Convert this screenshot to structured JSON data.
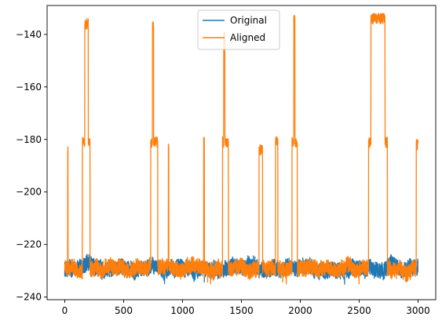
{
  "chart_data": {
    "type": "line",
    "title": "",
    "xlabel": "",
    "ylabel": "",
    "xlim": [
      -150,
      3150
    ],
    "ylim": [
      -241,
      -129
    ],
    "grid": false,
    "legend_position": "top-center",
    "x_ticks": [
      0,
      500,
      1000,
      1500,
      2000,
      2500,
      3000
    ],
    "x_tick_labels": [
      "0",
      "500",
      "1000",
      "1500",
      "2000",
      "2500",
      "3000"
    ],
    "y_ticks": [
      -240,
      -220,
      -200,
      -180,
      -160,
      -140
    ],
    "y_tick_labels": [
      "−240",
      "−220",
      "−200",
      "−180",
      "−160",
      "−140"
    ],
    "series": [
      {
        "name": "Original",
        "color": "#1f77b4",
        "n_points": 3000,
        "baseline": -229,
        "noise_amplitude": 3,
        "y_range": [
          -236,
          -222
        ],
        "spikes": []
      },
      {
        "name": "Aligned",
        "color": "#ff7f0e",
        "n_points": 3000,
        "baseline": -229,
        "noise_amplitude": 3,
        "y_range": [
          -235,
          -133
        ],
        "spikes": [
          {
            "start": 25,
            "end": 28,
            "level": -184
          },
          {
            "start": 150,
            "end": 170,
            "level": -181
          },
          {
            "start": 170,
            "end": 200,
            "level": -136
          },
          {
            "start": 200,
            "end": 215,
            "level": -181
          },
          {
            "start": 730,
            "end": 745,
            "level": -181
          },
          {
            "start": 745,
            "end": 755,
            "level": -137
          },
          {
            "start": 755,
            "end": 790,
            "level": -181
          },
          {
            "start": 880,
            "end": 884,
            "level": -183
          },
          {
            "start": 1180,
            "end": 1186,
            "level": -181
          },
          {
            "start": 1340,
            "end": 1350,
            "level": -181
          },
          {
            "start": 1350,
            "end": 1360,
            "level": -141
          },
          {
            "start": 1360,
            "end": 1390,
            "level": -181
          },
          {
            "start": 1650,
            "end": 1680,
            "level": -184
          },
          {
            "start": 1790,
            "end": 1810,
            "level": -181
          },
          {
            "start": 1930,
            "end": 1945,
            "level": -181
          },
          {
            "start": 1945,
            "end": 1955,
            "level": -134
          },
          {
            "start": 1955,
            "end": 1975,
            "level": -181
          },
          {
            "start": 2580,
            "end": 2600,
            "level": -181
          },
          {
            "start": 2600,
            "end": 2720,
            "level": -134
          },
          {
            "start": 2720,
            "end": 2740,
            "level": -181
          },
          {
            "start": 2985,
            "end": 3000,
            "level": -182
          }
        ]
      }
    ]
  }
}
